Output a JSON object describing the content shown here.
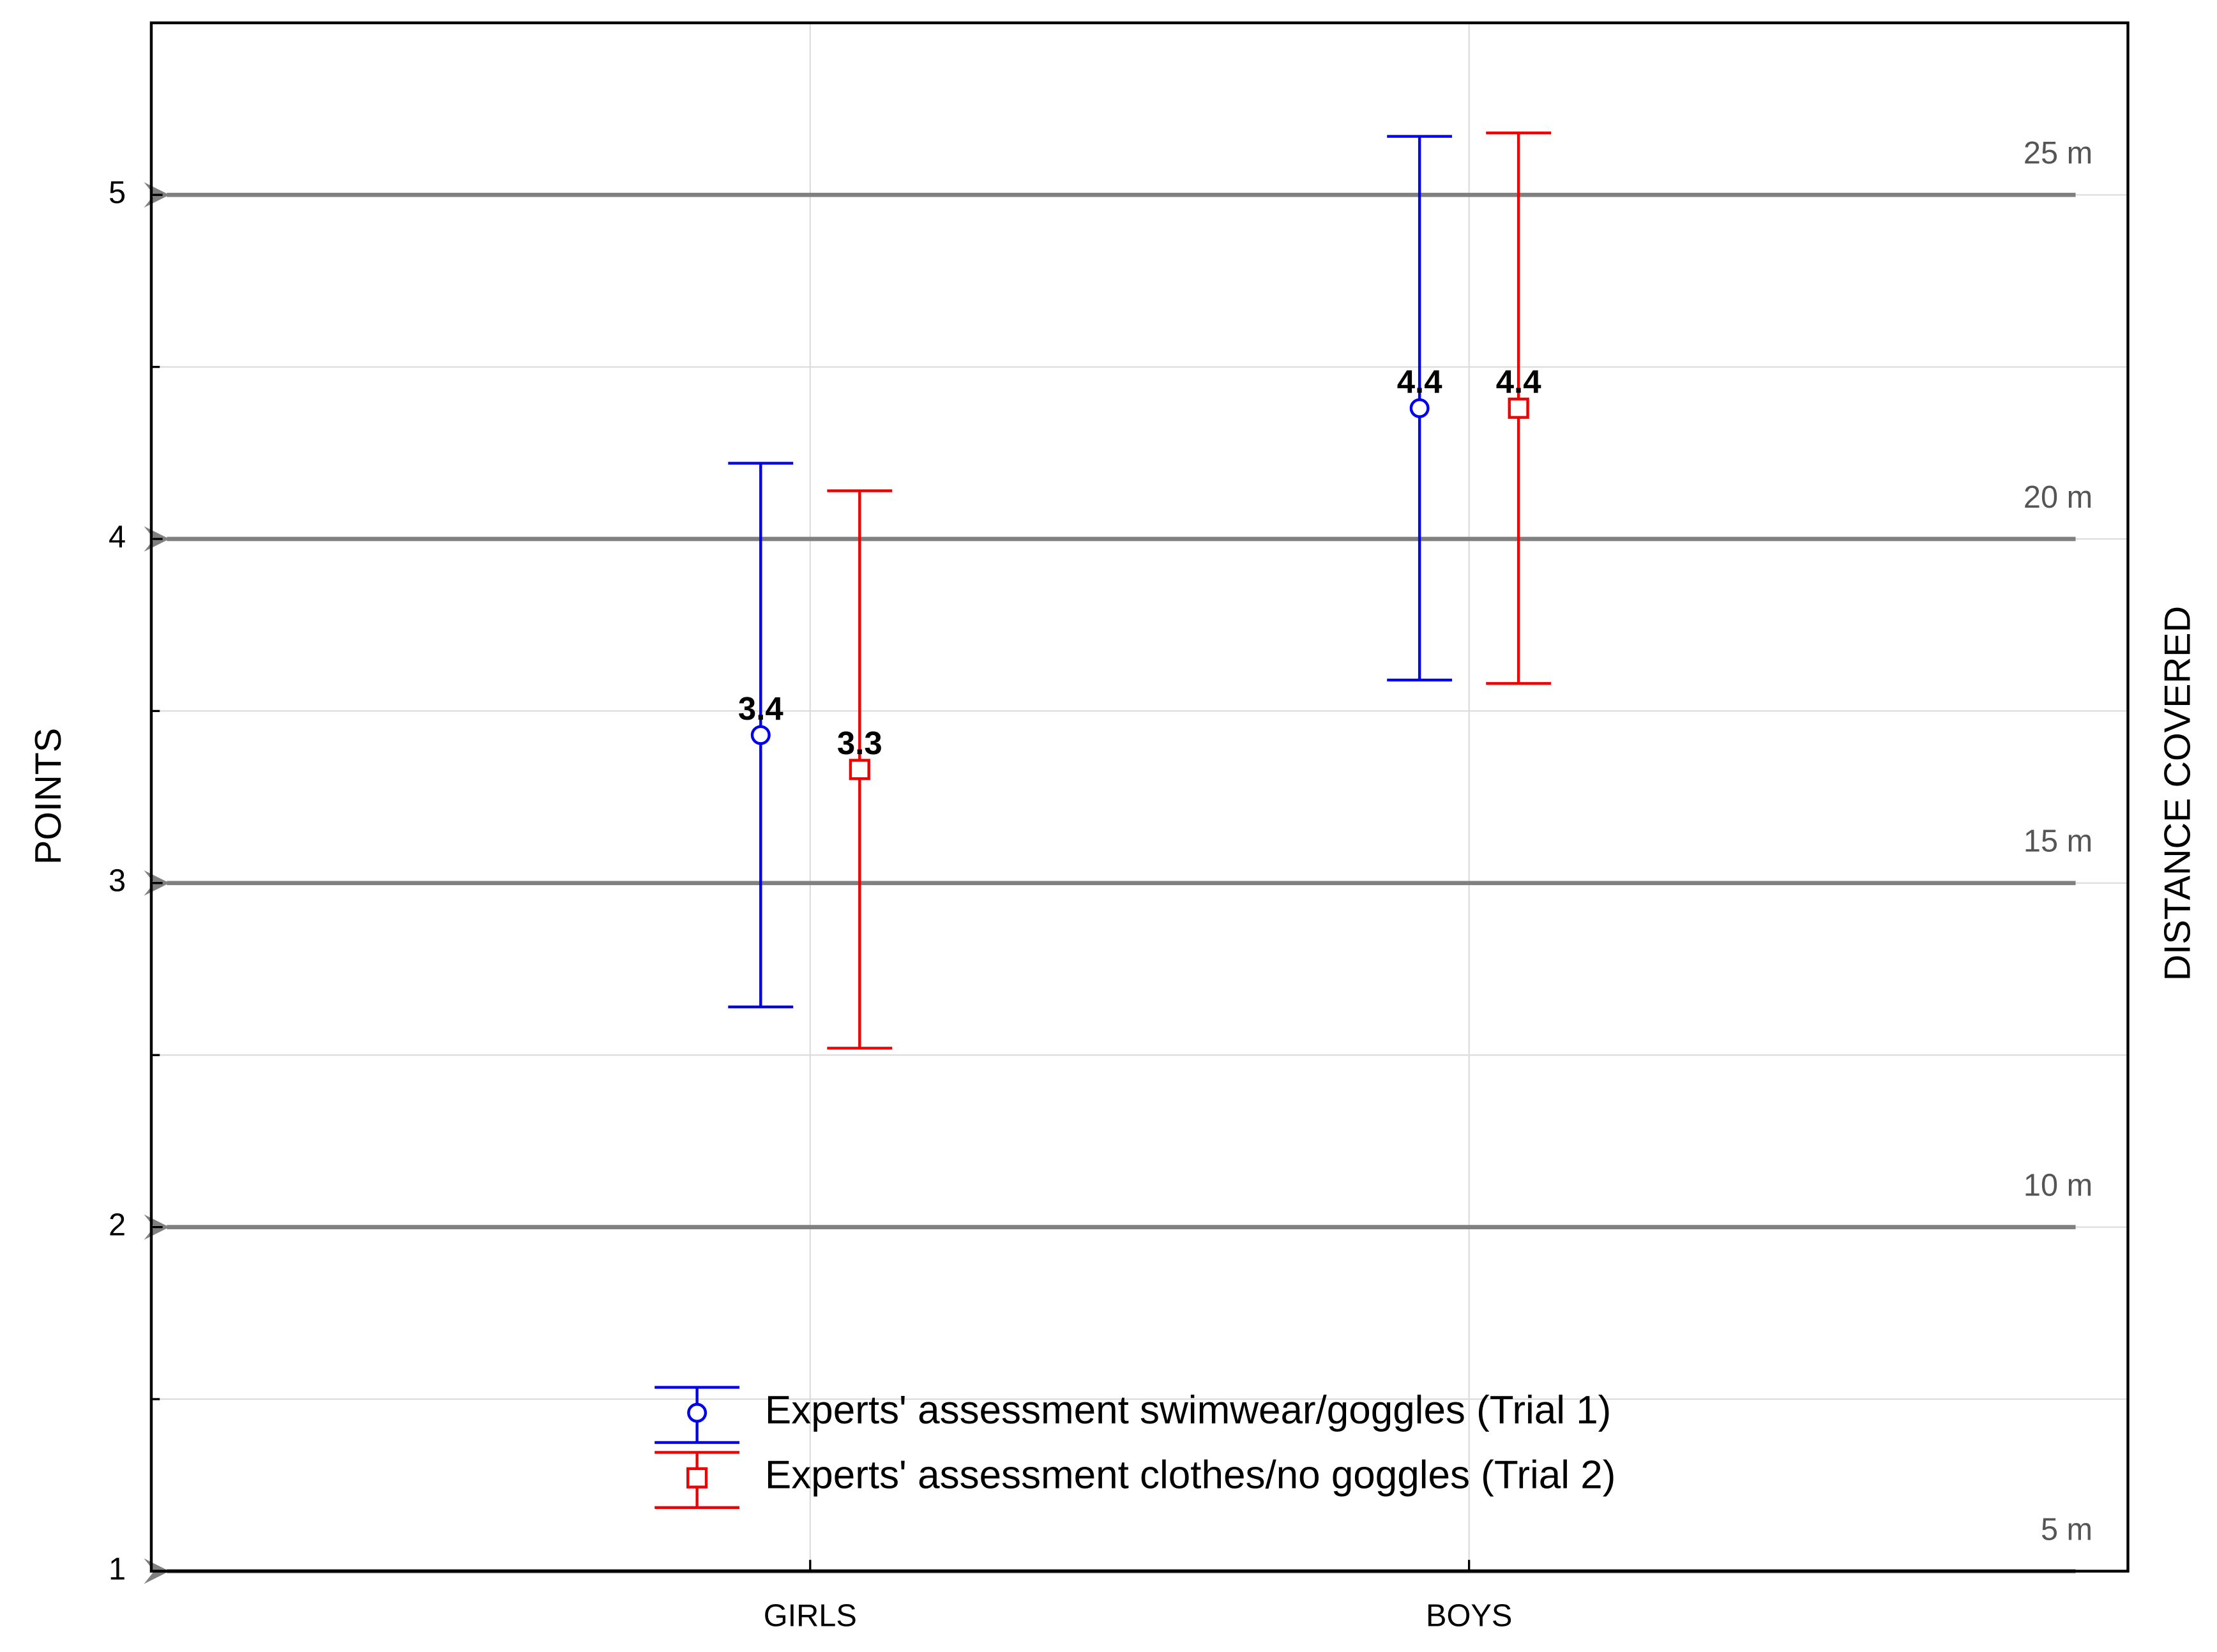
{
  "chart_data": {
    "type": "errorbar",
    "y_axis_label": "POINTS",
    "y2_axis_label": "DISTANCE COVERED",
    "categories": [
      "GIRLS",
      "BOYS"
    ],
    "ylim": [
      1,
      5.5
    ],
    "yticks": [
      1,
      2,
      3,
      4,
      5
    ],
    "minor_yticks": [
      1.5,
      2.5,
      3.5,
      4.5
    ],
    "grid": true,
    "legend": "bottom-center",
    "series": [
      {
        "name": "Experts' assessment swimwear/goggles (Trial 1)",
        "color": "#0000ee",
        "marker": "circle",
        "values": [
          3.43,
          4.38
        ],
        "errors": [
          0.79,
          0.79
        ],
        "value_labels": [
          "3.4",
          "4.4"
        ]
      },
      {
        "name": "Experts' assessment clothes/no goggles (Trial 2)",
        "color": "#ee0000",
        "marker": "square",
        "values": [
          3.33,
          4.38
        ],
        "errors": [
          0.81,
          0.8
        ],
        "value_labels": [
          "3.3",
          "4.4"
        ]
      }
    ],
    "reference_lines": [
      {
        "value": 5,
        "label": "25 m"
      },
      {
        "value": 4,
        "label": "20 m"
      },
      {
        "value": 3,
        "label": "15 m"
      },
      {
        "value": 2,
        "label": "10 m"
      },
      {
        "value": 1,
        "label": "5 m"
      }
    ]
  }
}
